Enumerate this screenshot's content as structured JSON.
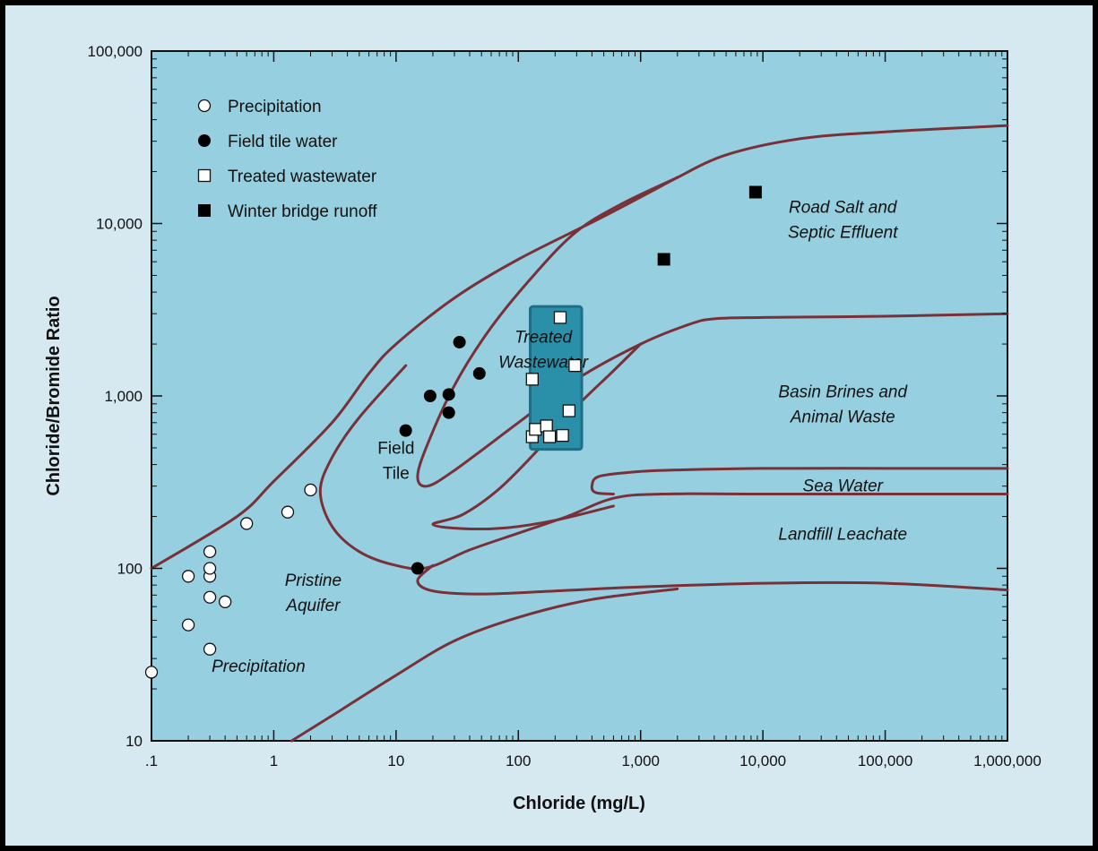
{
  "chart_data": {
    "type": "scatter",
    "xlabel": "Chloride (mg/L)",
    "ylabel": "Chloride/Bromide Ratio",
    "x_scale": "log",
    "y_scale": "log",
    "xlim": [
      0.1,
      1000000
    ],
    "ylim": [
      10,
      100000
    ],
    "x_tick_labels": [
      ".1",
      "1",
      "10",
      "100",
      "1,000",
      "10,000",
      "100,000",
      "1,000,000"
    ],
    "y_tick_labels": [
      "10",
      "100",
      "1,000",
      "10,000",
      "100,000"
    ],
    "grid": false,
    "legend_position": "top-left",
    "colors": {
      "plot_background": "#95cfe0",
      "figure_background": "#d6e9f1",
      "boundary_lines": "#7a3038",
      "treated_box_fill": "#2a8fa8",
      "treated_box_stroke": "#1f6e86"
    },
    "series": [
      {
        "name": "Precipitation",
        "marker": "open-circle",
        "points": [
          [
            0.1,
            25
          ],
          [
            0.2,
            47
          ],
          [
            0.2,
            90
          ],
          [
            0.3,
            34
          ],
          [
            0.3,
            68
          ],
          [
            0.3,
            90
          ],
          [
            0.3,
            100
          ],
          [
            0.3,
            125
          ],
          [
            0.4,
            64
          ],
          [
            0.6,
            182
          ],
          [
            1.3,
            212
          ],
          [
            2,
            285
          ]
        ]
      },
      {
        "name": "Field tile water",
        "marker": "filled-circle",
        "points": [
          [
            12,
            630
          ],
          [
            15,
            100
          ],
          [
            19,
            1000
          ],
          [
            27,
            800
          ],
          [
            27,
            1020
          ],
          [
            33,
            2050
          ],
          [
            48,
            1350
          ]
        ]
      },
      {
        "name": "Treated wastewater",
        "marker": "open-square",
        "points": [
          [
            130,
            1250
          ],
          [
            130,
            580
          ],
          [
            138,
            640
          ],
          [
            170,
            670
          ],
          [
            180,
            580
          ],
          [
            220,
            2850
          ],
          [
            230,
            590
          ],
          [
            260,
            820
          ],
          [
            290,
            1500
          ]
        ]
      },
      {
        "name": "Winter bridge runoff",
        "marker": "filled-square",
        "points": [
          [
            1550,
            6200
          ],
          [
            8700,
            15200
          ]
        ]
      }
    ],
    "treated_box": {
      "x": [
        125,
        330
      ],
      "y": [
        490,
        3300
      ]
    },
    "region_labels": [
      {
        "lines": [
          "Road Salt and",
          "Septic Effluent"
        ],
        "x": 45000,
        "y": 10500,
        "italic": true
      },
      {
        "lines": [
          "Treated",
          "Wastewater"
        ],
        "x": 160,
        "y": 1850,
        "italic": true
      },
      {
        "lines": [
          "Basin Brines and",
          "Animal Waste"
        ],
        "x": 45000,
        "y": 890,
        "italic": true
      },
      {
        "lines": [
          "Sea Water"
        ],
        "x": 45000,
        "y": 300,
        "italic": true
      },
      {
        "lines": [
          "Landfill Leachate"
        ],
        "x": 45000,
        "y": 158,
        "italic": true
      },
      {
        "lines": [
          "Field",
          "Tile"
        ],
        "x": 10,
        "y": 420,
        "italic": false
      },
      {
        "lines": [
          "Pristine",
          "Aquifer"
        ],
        "x": 2.1,
        "y": 72,
        "italic": true
      },
      {
        "lines": [
          "Precipitation"
        ],
        "x": 0.75,
        "y": 27,
        "italic": true
      }
    ],
    "boundary_curves": [
      [
        [
          0.1,
          100
        ],
        [
          0.5,
          200
        ],
        [
          1,
          320
        ],
        [
          3,
          700
        ],
        [
          6,
          1350
        ],
        [
          10,
          2000
        ],
        [
          30,
          3700
        ],
        [
          100,
          6200
        ],
        [
          500,
          11000
        ],
        [
          2000,
          18500
        ]
      ],
      [
        [
          2000,
          18500
        ],
        [
          5000,
          25000
        ],
        [
          20000,
          31000
        ],
        [
          100000,
          34000
        ],
        [
          1000000,
          37000
        ]
      ],
      [
        [
          2000,
          18500
        ],
        [
          700,
          13000
        ],
        [
          300,
          9000
        ],
        [
          140,
          5200
        ],
        [
          60,
          2500
        ],
        [
          30,
          1150
        ],
        [
          18,
          520
        ],
        [
          15,
          340
        ],
        [
          18,
          300
        ],
        [
          30,
          370
        ],
        [
          100,
          700
        ],
        [
          300,
          1250
        ],
        [
          1000,
          2000
        ],
        [
          2500,
          2600
        ],
        [
          4000,
          2800
        ],
        [
          10000,
          2850
        ],
        [
          100000,
          2900
        ],
        [
          1000000,
          3000
        ]
      ],
      [
        [
          1000,
          2000
        ],
        [
          600,
          1400
        ],
        [
          300,
          870
        ],
        [
          150,
          500
        ],
        [
          70,
          290
        ],
        [
          35,
          205
        ],
        [
          20,
          180
        ],
        [
          35,
          170
        ],
        [
          80,
          172
        ],
        [
          200,
          190
        ],
        [
          600,
          230
        ]
      ],
      [
        [
          12,
          1500
        ],
        [
          5,
          750
        ],
        [
          3,
          440
        ],
        [
          2.4,
          280
        ],
        [
          3,
          175
        ],
        [
          5,
          125
        ],
        [
          10,
          104
        ],
        [
          18,
          101
        ],
        [
          40,
          128
        ],
        [
          100,
          160
        ],
        [
          250,
          200
        ],
        [
          600,
          255
        ],
        [
          1500,
          270
        ],
        [
          10000,
          270
        ],
        [
          1000000,
          270
        ]
      ],
      [
        [
          1000000,
          380
        ],
        [
          100000,
          380
        ],
        [
          10000,
          380
        ],
        [
          1500,
          370
        ],
        [
          800,
          360
        ],
        [
          450,
          340
        ],
        [
          400,
          300
        ],
        [
          430,
          275
        ],
        [
          600,
          270
        ]
      ],
      [
        [
          20,
          104
        ],
        [
          15,
          85
        ],
        [
          20,
          74
        ],
        [
          50,
          71
        ],
        [
          200,
          74
        ],
        [
          1000,
          78
        ],
        [
          10000,
          82
        ],
        [
          100000,
          82
        ],
        [
          1000000,
          75
        ]
      ],
      [
        [
          1.4,
          10
        ],
        [
          3,
          14
        ],
        [
          10,
          24
        ],
        [
          30,
          38
        ],
        [
          100,
          52
        ],
        [
          400,
          66
        ],
        [
          2000,
          76
        ]
      ]
    ]
  }
}
